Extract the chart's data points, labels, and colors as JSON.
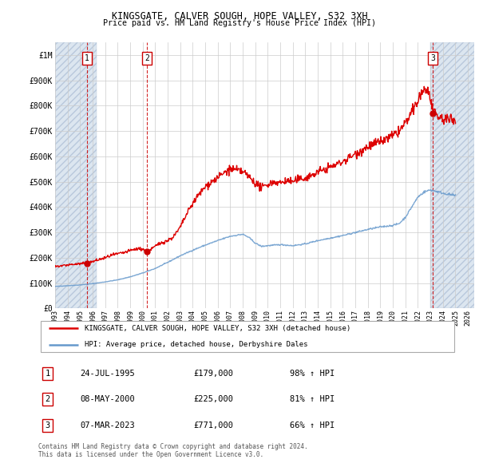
{
  "title": "KINGSGATE, CALVER SOUGH, HOPE VALLEY, S32 3XH",
  "subtitle": "Price paid vs. HM Land Registry's House Price Index (HPI)",
  "ylabel_ticks": [
    "£0",
    "£100K",
    "£200K",
    "£300K",
    "£400K",
    "£500K",
    "£600K",
    "£700K",
    "£800K",
    "£900K",
    "£1M"
  ],
  "ytick_values": [
    0,
    100000,
    200000,
    300000,
    400000,
    500000,
    600000,
    700000,
    800000,
    900000,
    1000000
  ],
  "ylim": [
    0,
    1050000
  ],
  "xlim_start": 1993.0,
  "xlim_end": 2026.5,
  "hatch_left_end": 1996.3,
  "hatch_right_start": 2023.0,
  "sale_dates": [
    1995.56,
    2000.36,
    2023.18
  ],
  "sale_prices": [
    179000,
    225000,
    771000
  ],
  "sale_labels": [
    "1",
    "2",
    "3"
  ],
  "red_line_color": "#dd0000",
  "blue_line_color": "#6699cc",
  "sale_dot_color": "#cc0000",
  "legend_label_red": "KINGSGATE, CALVER SOUGH, HOPE VALLEY, S32 3XH (detached house)",
  "legend_label_blue": "HPI: Average price, detached house, Derbyshire Dales",
  "table_rows": [
    [
      "1",
      "24-JUL-1995",
      "£179,000",
      "98% ↑ HPI"
    ],
    [
      "2",
      "08-MAY-2000",
      "£225,000",
      "81% ↑ HPI"
    ],
    [
      "3",
      "07-MAR-2023",
      "£771,000",
      "66% ↑ HPI"
    ]
  ],
  "footnote_line1": "Contains HM Land Registry data © Crown copyright and database right 2024.",
  "footnote_line2": "This data is licensed under the Open Government Licence v3.0.",
  "background_color": "#ffffff",
  "hatch_fill_color": "#dce6f0",
  "grid_color": "#cccccc",
  "x_tick_years": [
    1993,
    1994,
    1995,
    1996,
    1997,
    1998,
    1999,
    2000,
    2001,
    2002,
    2003,
    2004,
    2005,
    2006,
    2007,
    2008,
    2009,
    2010,
    2011,
    2012,
    2013,
    2014,
    2015,
    2016,
    2017,
    2018,
    2019,
    2020,
    2021,
    2022,
    2023,
    2024,
    2025,
    2026
  ]
}
